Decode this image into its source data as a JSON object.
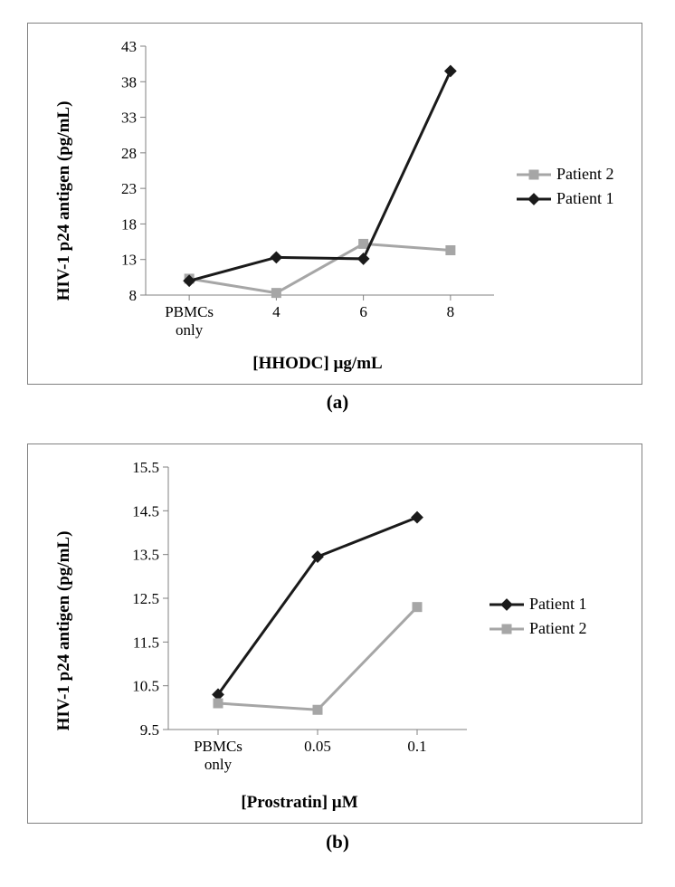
{
  "chart_a": {
    "type": "line",
    "y_label": "HIV-1 p24 antigen (pg/mL)",
    "x_label": "[HHODC] µg/mL",
    "caption": "(a)",
    "x_categories": [
      "PBMCs\nonly",
      "4",
      "6",
      "8"
    ],
    "y_ticks": [
      8,
      13,
      18,
      23,
      28,
      33,
      38,
      43
    ],
    "ylim": [
      8,
      43
    ],
    "series": [
      {
        "name": "Patient 2",
        "color": "#a6a6a6",
        "marker": "square",
        "marker_size": 11,
        "line_width": 3,
        "values": [
          10.3,
          8.3,
          15.2,
          14.3
        ]
      },
      {
        "name": "Patient 1",
        "color": "#1a1a1a",
        "marker": "diamond",
        "marker_size": 12,
        "line_width": 3,
        "values": [
          10.0,
          13.3,
          13.1,
          39.5
        ]
      }
    ],
    "axis_fontsize": 17,
    "tick_fontsize": 17,
    "label_fontsize": 19,
    "legend_fontsize": 18,
    "legend_order": [
      "Patient 2",
      "Patient 1"
    ],
    "background_color": "#ffffff",
    "axis_color": "#808080"
  },
  "chart_b": {
    "type": "line",
    "y_label": "HIV-1 p24 antigen (pg/mL)",
    "x_label": "[Prostratin] µM",
    "caption": "(b)",
    "x_categories": [
      "PBMCs\nonly",
      "0.05",
      "0.1"
    ],
    "y_ticks": [
      9.5,
      10.5,
      11.5,
      12.5,
      13.5,
      14.5,
      15.5
    ],
    "ylim": [
      9.5,
      15.5
    ],
    "series": [
      {
        "name": "Patient 1",
        "color": "#1a1a1a",
        "marker": "diamond",
        "marker_size": 12,
        "line_width": 3,
        "values": [
          10.3,
          13.45,
          14.35
        ]
      },
      {
        "name": "Patient 2",
        "color": "#a6a6a6",
        "marker": "square",
        "marker_size": 11,
        "line_width": 3,
        "values": [
          10.1,
          9.95,
          12.3
        ]
      }
    ],
    "axis_fontsize": 17,
    "tick_fontsize": 17,
    "label_fontsize": 19,
    "legend_fontsize": 18,
    "legend_order": [
      "Patient 1",
      "Patient 2"
    ],
    "background_color": "#ffffff",
    "axis_color": "#808080"
  }
}
